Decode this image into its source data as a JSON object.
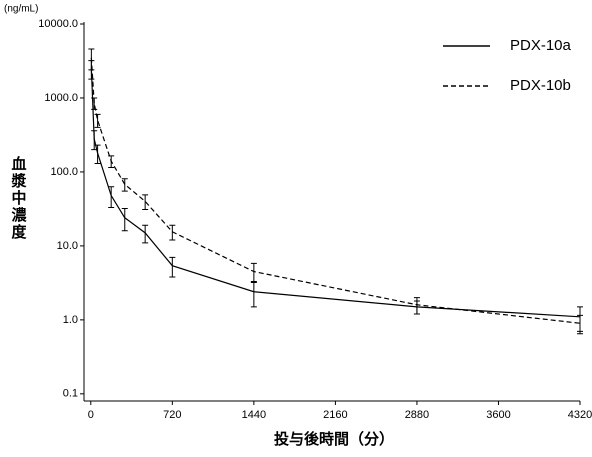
{
  "chart_data": {
    "type": "line",
    "y_unit": "(ng/mL)",
    "ylabel": "血漿中濃度",
    "xlabel": "投与後時間（分）",
    "x": [
      5,
      30,
      60,
      180,
      300,
      480,
      720,
      1440,
      2880,
      4320
    ],
    "series": [
      {
        "name": "PDX-10a",
        "color": "#000000",
        "dash": "solid",
        "values": [
          2500,
          280,
          180,
          48,
          24,
          15,
          5.4,
          2.4,
          1.5,
          1.1
        ],
        "errors": [
          700,
          80,
          50,
          15,
          8,
          4,
          1.6,
          0.9,
          0.3,
          0.4
        ]
      },
      {
        "name": "PDX-10b",
        "color": "#000000",
        "dash": "dashed",
        "values": [
          3500,
          850,
          500,
          140,
          68,
          40,
          15.5,
          4.5,
          1.6,
          0.9
        ],
        "errors": [
          1100,
          150,
          100,
          25,
          13,
          9,
          3.5,
          1.3,
          0.4,
          0.25
        ]
      }
    ],
    "xlim": [
      -60,
      4320
    ],
    "xticks": [
      0,
      720,
      1440,
      2160,
      2880,
      3600,
      4320
    ],
    "ylim": [
      0.08,
      10000
    ],
    "ylog": true,
    "yticks": [
      0.1,
      {
        "value": 1,
        "label": "1.0"
      },
      {
        "value": 10,
        "label": "10.0"
      },
      {
        "value": 100,
        "label": "100.0"
      },
      {
        "value": 1000,
        "label": "1000.0"
      },
      {
        "value": 10000,
        "label": "10000.0"
      }
    ],
    "legend": "upper right"
  }
}
